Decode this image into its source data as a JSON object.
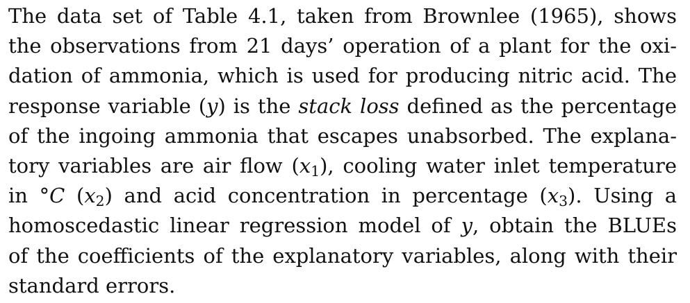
{
  "paragraph": {
    "l1": "The data set of Table 4.1, taken from Brownlee (1965), shows",
    "l2": "the observations from 21 days’ operation of a plant for the oxi-",
    "l3": "dation of ammonia, which is used for producing nitric acid. The",
    "l4a": "response variable (",
    "l4y": "y",
    "l4b": ") is the ",
    "l4it": "stack loss",
    "l4c": " defined as the percentage",
    "l5": "of the ingoing ammonia that escapes unabsorbed. The explana-",
    "l6a": "tory variables are air flow (",
    "l6x": "x",
    "l6s": "1",
    "l6b": "), cooling water inlet temperature",
    "l7a": "in °",
    "l7c": "C",
    "l7b": " (",
    "l7x": "x",
    "l7s": "2",
    "l7d": ") and acid concentration in percentage (",
    "l7x2": "x",
    "l7s2": "3",
    "l7e": "). Using a",
    "l8a": "homoscedastic linear regression model of ",
    "l8y": "y",
    "l8b": ", obtain the BLUEs",
    "l9": "of the coefficients of the explanatory variables, along with their",
    "l10": "standard errors."
  }
}
